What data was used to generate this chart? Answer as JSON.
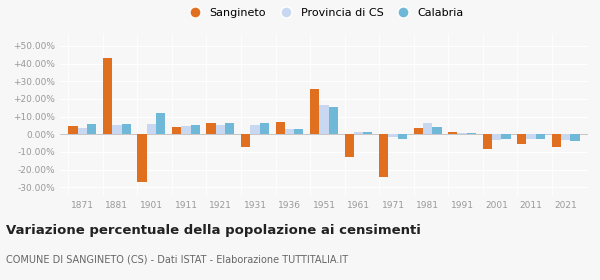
{
  "years": [
    1871,
    1881,
    1901,
    1911,
    1921,
    1931,
    1936,
    1951,
    1961,
    1971,
    1981,
    1991,
    2001,
    2011,
    2021
  ],
  "sangineto": [
    4.5,
    43.0,
    -27.0,
    4.0,
    6.5,
    -7.5,
    7.0,
    25.5,
    -13.0,
    -24.5,
    3.5,
    1.0,
    -8.5,
    -5.5,
    -7.5
  ],
  "provincia_cs": [
    3.5,
    5.0,
    6.0,
    4.5,
    5.0,
    5.0,
    3.0,
    16.5,
    1.0,
    -1.5,
    6.5,
    0.5,
    -3.0,
    -2.5,
    -3.5
  ],
  "calabria": [
    6.0,
    6.0,
    12.0,
    5.5,
    6.5,
    6.5,
    3.0,
    15.5,
    1.5,
    -2.5,
    4.0,
    0.5,
    -2.5,
    -2.5,
    -4.0
  ],
  "color_sangineto": "#e07020",
  "color_provincia": "#c8d8f0",
  "color_calabria": "#70b8d8",
  "title": "Variazione percentuale della popolazione ai censimenti",
  "subtitle": "COMUNE DI SANGINETO (CS) - Dati ISTAT - Elaborazione TUTTITALIA.IT",
  "ytick_vals": [
    -30,
    -20,
    -10,
    0,
    10,
    20,
    30,
    40,
    50
  ],
  "ylim": [
    -35,
    57
  ],
  "legend_labels": [
    "Sangineto",
    "Provincia di CS",
    "Calabria"
  ],
  "background_color": "#f7f7f7",
  "grid_color": "#ffffff",
  "tick_color": "#999999",
  "title_color": "#222222",
  "subtitle_color": "#666666"
}
